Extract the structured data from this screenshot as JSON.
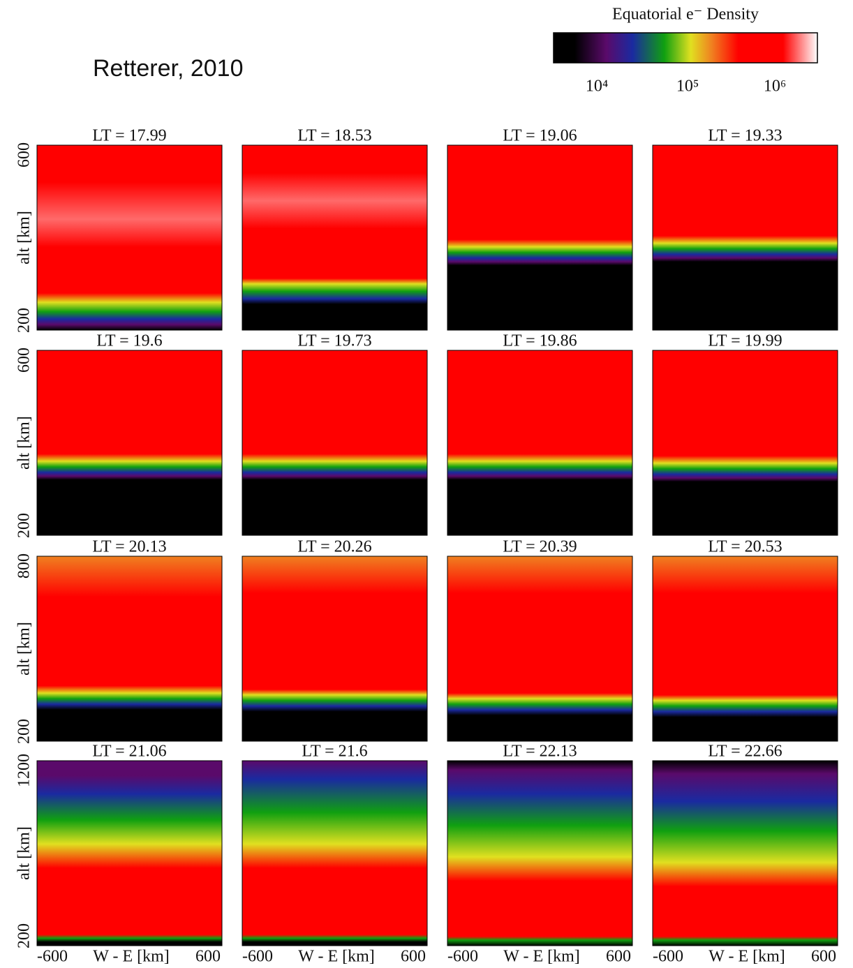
{
  "credit": "Retterer, 2010",
  "colorbar": {
    "title": "Equatorial e⁻ Density",
    "ticks": [
      "10⁴",
      "10⁵",
      "10⁶"
    ]
  },
  "ylabel": "alt [km]",
  "xlabel": "W - E [km]",
  "xticks": [
    -600,
    600
  ],
  "rows": [
    {
      "yticks": [
        600,
        200
      ],
      "panels": [
        "LT = 17.99",
        "LT = 18.53",
        "LT = 19.06",
        "LT = 19.33"
      ]
    },
    {
      "yticks": [
        600,
        200
      ],
      "panels": [
        "LT = 19.6",
        "LT = 19.73",
        "LT = 19.86",
        "LT = 19.99"
      ]
    },
    {
      "yticks": [
        800,
        200
      ],
      "panels": [
        "LT = 20.13",
        "LT = 20.26",
        "LT = 20.39",
        "LT = 20.53"
      ]
    },
    {
      "yticks": [
        1200,
        200
      ],
      "panels": [
        "LT = 21.06",
        "LT = 21.6",
        "LT = 22.13",
        "LT = 22.66"
      ]
    }
  ]
}
